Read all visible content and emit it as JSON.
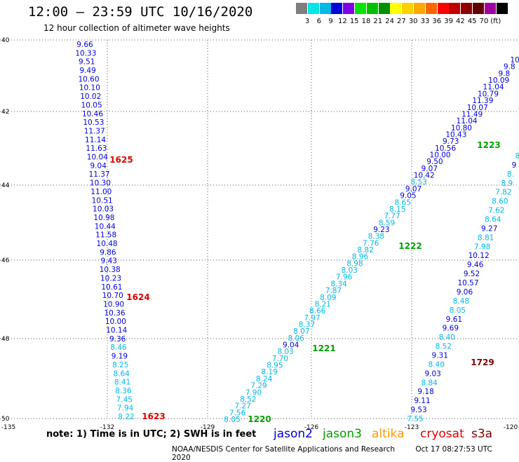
{
  "title": "12:00 – 23:59 UTC 10/16/2020",
  "subtitle": "12 hour collection of altimeter wave heights",
  "note": "note: 1) Time is in UTC; 2) SWH is in feet",
  "credit": "NOAA/NESDIS Center for Satellite Applications and Research",
  "timestamp": "Oct 17 08:27:53 UTC 2020",
  "legend": {
    "colors": [
      "#7f7f7f",
      "#00e5e5",
      "#00b7e6",
      "#0000d8",
      "#7f00e5",
      "#00e600",
      "#00c000",
      "#009000",
      "#ffff00",
      "#ffd000",
      "#ffa800",
      "#ff6600",
      "#ff0000",
      "#c00000",
      "#900000",
      "#600000",
      "#a000a0",
      "#000000"
    ],
    "labels": [
      "3",
      "6",
      "9",
      "12",
      "15",
      "18",
      "21",
      "24",
      "27",
      "30",
      "33",
      "36",
      "39",
      "42",
      "45",
      "70",
      "(ft)"
    ]
  },
  "satellites": [
    {
      "name": "jason2",
      "color": "#0000cc"
    },
    {
      "name": "jason3",
      "color": "#00a000"
    },
    {
      "name": "altika",
      "color": "#ff9900"
    },
    {
      "name": "cryosat",
      "color": "#dd0000"
    },
    {
      "name": "s3a",
      "color": "#800000"
    }
  ],
  "lat_labels": [
    "40",
    "42",
    "44",
    "46",
    "48",
    "50"
  ],
  "lon_labels": [
    "-135",
    "-132",
    "-129",
    "-126",
    "-123",
    "-120"
  ],
  "times": [
    {
      "t": "1625",
      "sat": "cryosat"
    },
    {
      "t": "1624",
      "sat": "cryosat"
    },
    {
      "t": "1623",
      "sat": "cryosat"
    },
    {
      "t": "1223",
      "sat": "jason3"
    },
    {
      "t": "1222",
      "sat": "jason3"
    },
    {
      "t": "1221",
      "sat": "jason3"
    },
    {
      "t": "1220",
      "sat": "jason3"
    },
    {
      "t": "1729",
      "sat": "s3a"
    }
  ],
  "tracks": {
    "cryosat": [
      "9.66",
      "10.33",
      "9.51",
      "9.49",
      "10.60",
      "10.10",
      "10.02",
      "10.05",
      "10.46",
      "10.53",
      "11.37",
      "11.14",
      "11.63",
      "10.04",
      "9.04",
      "11.37",
      "10.30",
      "11.00",
      "10.51",
      "10.03",
      "10.98",
      "10.44",
      "11.58",
      "10.48",
      "9.86",
      "9.43",
      "10.38",
      "10.23",
      "10.61",
      "10.70",
      "10.90",
      "10.36",
      "10.00",
      "10.14",
      "9.36",
      "8.46",
      "9.19",
      "8.25",
      "8.64",
      "8.41",
      "8.36",
      "7.45",
      "7.94",
      "8.22"
    ],
    "jason3": [
      "10",
      "9.8",
      "9.8",
      "10.09",
      "11.04",
      "10.79",
      "11.39",
      "10.07",
      "11.49",
      "11.04",
      "10.80",
      "10.43",
      "9.73",
      "10.56",
      "10.00",
      "9.50",
      "9.07",
      "10.42",
      "8.53",
      "9.07",
      "9.05",
      "8.65",
      "8.15",
      "7.77",
      "8.59",
      "9.23",
      "8.38",
      "7.76",
      "8.82",
      "8.96",
      "8.98",
      "8.03",
      "7.96",
      "8.34",
      "7.87",
      "8.09",
      "8.21",
      "8.66",
      "7.97",
      "8.37",
      "8.07",
      "8.06",
      "9.04",
      "8.03",
      "7.70",
      "8.95",
      "8.19",
      "8.24",
      "7.29",
      "7.90",
      "8.52",
      "7.27",
      "7.56",
      "8.05"
    ],
    "s3a": [
      "8",
      "9",
      "8.",
      "8.9",
      "7.82",
      "8.60",
      "7.62",
      "8.64",
      "9.27",
      "8.81",
      "7.98",
      "10.12",
      "9.46",
      "9.52",
      "10.57",
      "9.06",
      "8.48",
      "8.05",
      "9.61",
      "9.69",
      "8.40",
      "8.52",
      "9.31",
      "8.40",
      "9.03",
      "8.84",
      "9.18",
      "9.11",
      "9.53",
      "7.55"
    ]
  }
}
